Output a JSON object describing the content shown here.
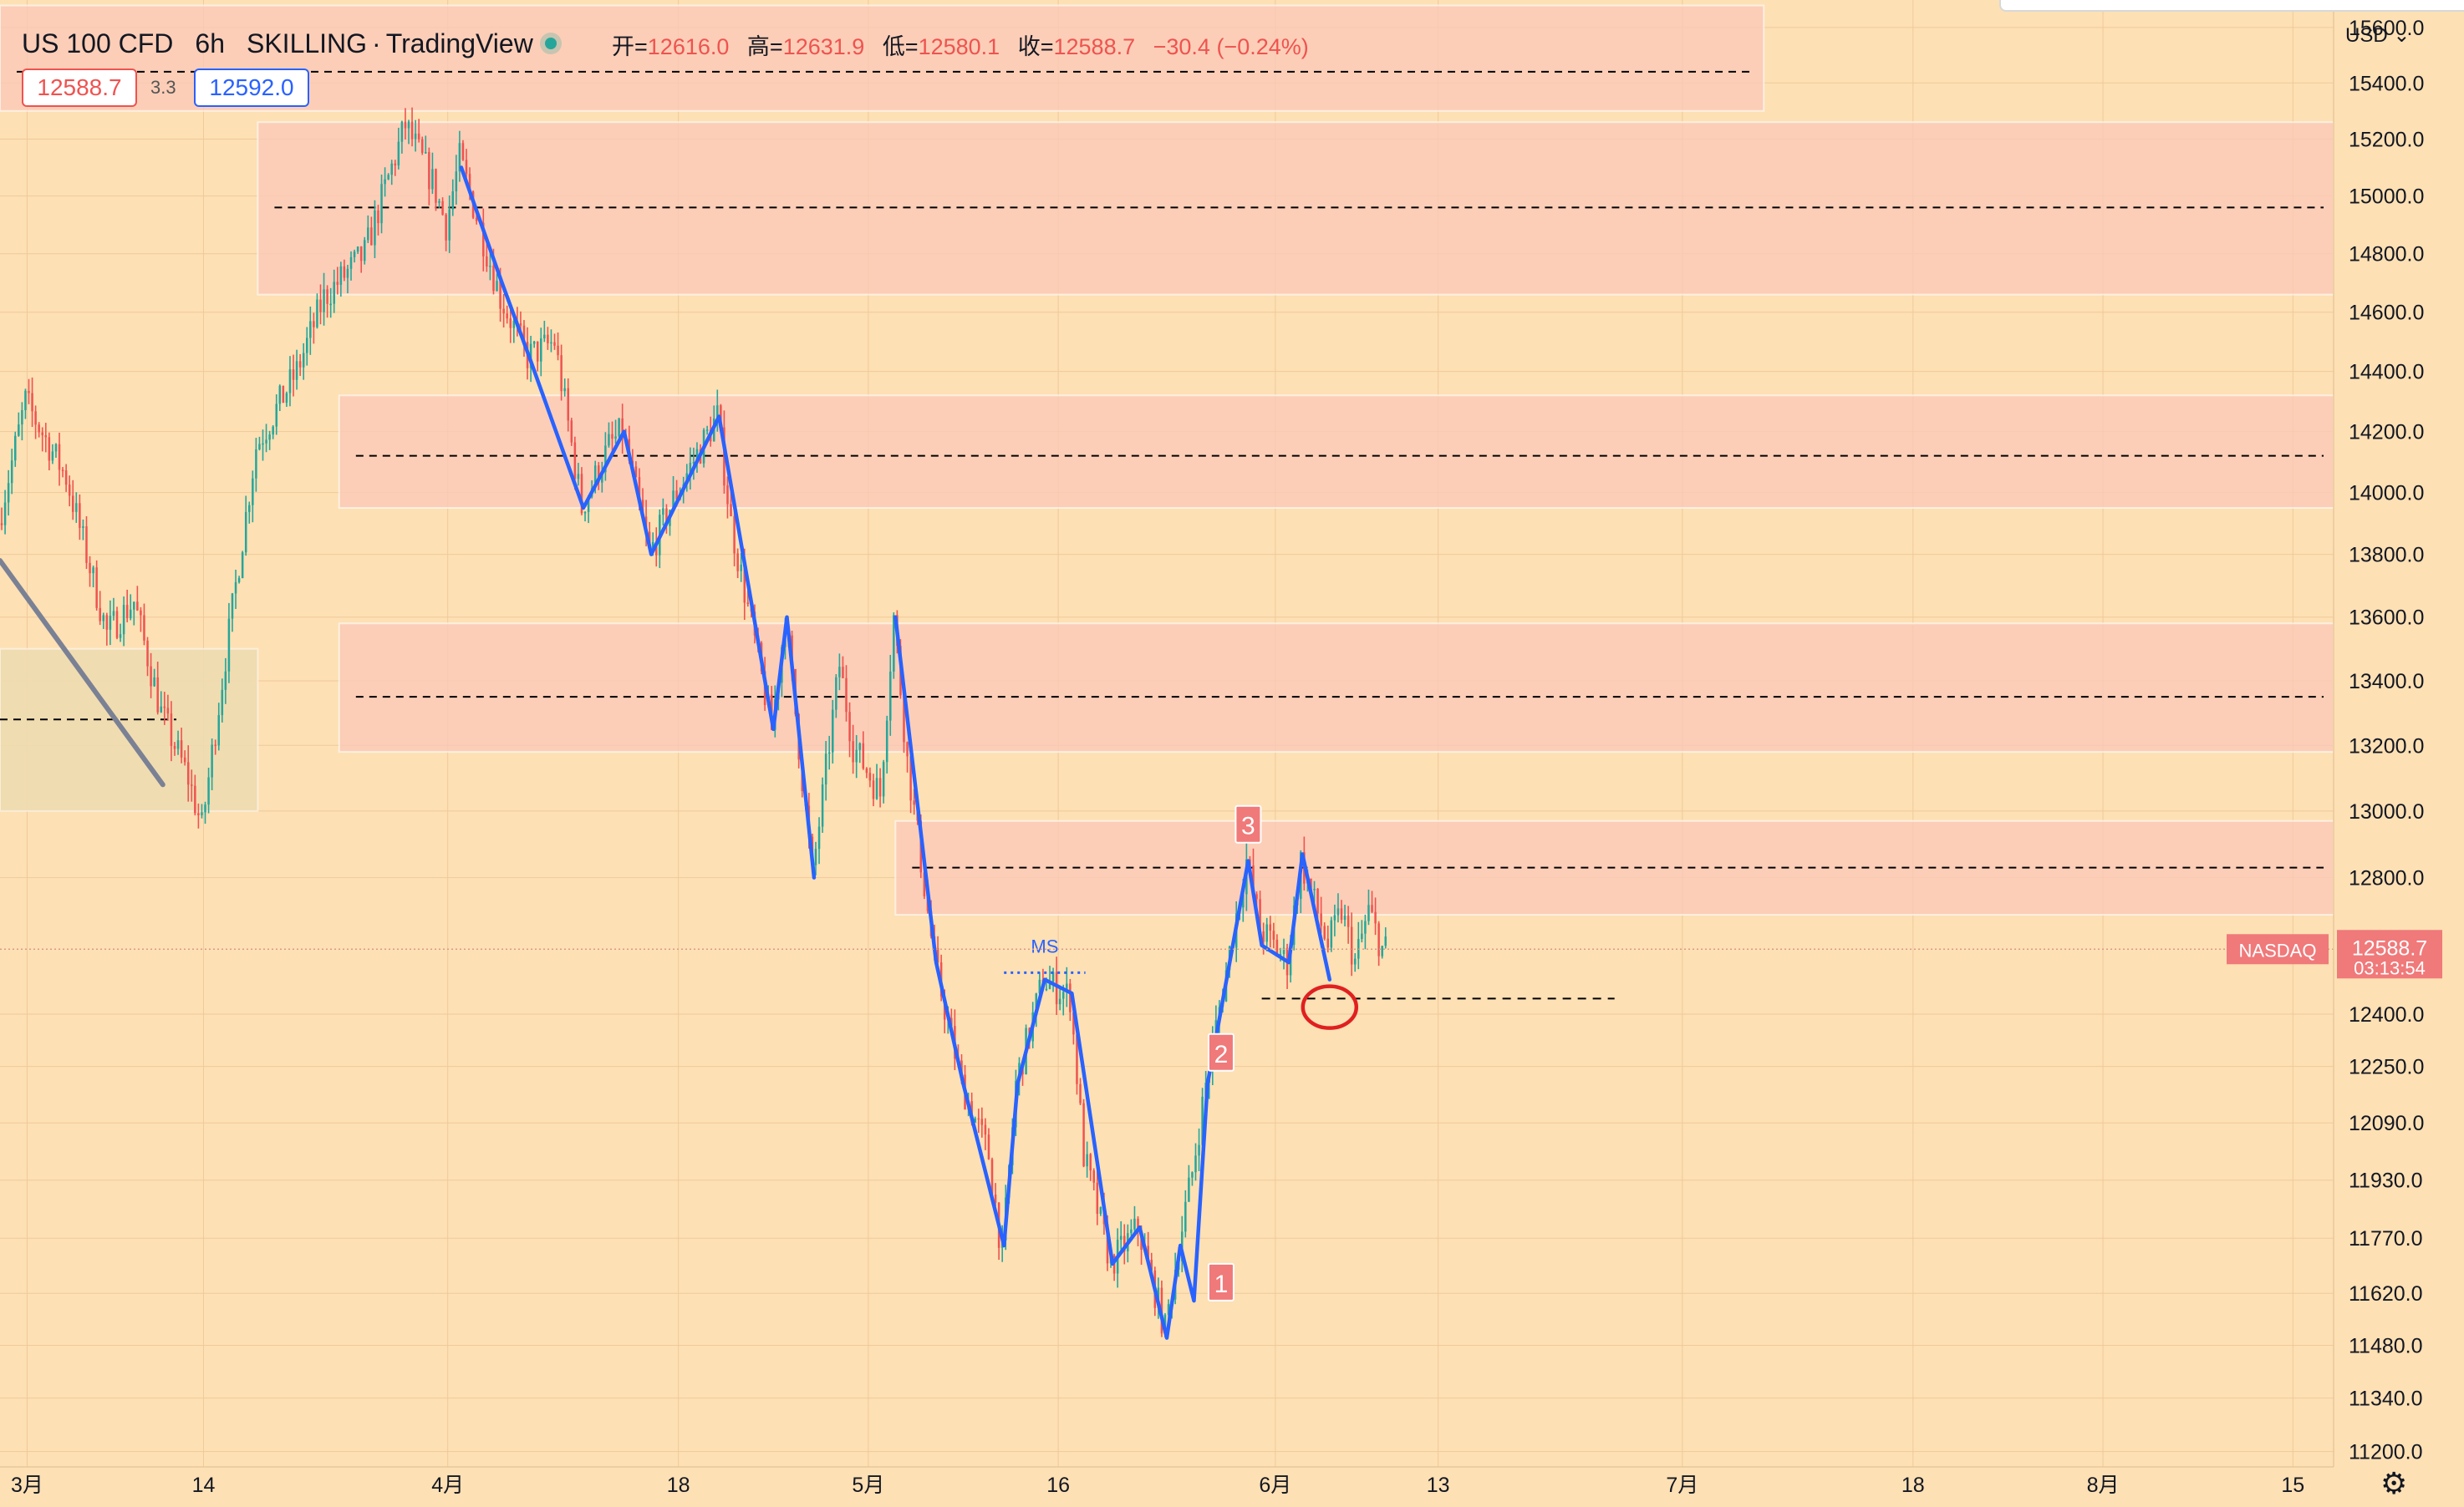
{
  "header": {
    "symbol": "US 100 CFD",
    "interval": "6h",
    "broker": "SKILLING",
    "platform": "TradingView",
    "ohlc": {
      "open_label": "开=",
      "open": "12616.0",
      "high_label": "高=",
      "high": "12631.9",
      "low_label": "低=",
      "low": "12580.1",
      "close_label": "收=",
      "close": "12588.7",
      "change": "−30.4 (−0.24%)"
    },
    "bid": "12588.7",
    "spread": "3.3",
    "ask": "12592.0"
  },
  "axis": {
    "currency": "USD",
    "currency_chevron": "⌄",
    "settings_icon": "gear-icon",
    "settings_glyph": "⚙"
  },
  "colors": {
    "background": "#fde0b4",
    "up_candle": "#26a69a",
    "down_candle": "#ef5350",
    "zone_fill": "#fbc8b8",
    "trend_line": "#2962ff",
    "price_label_bg": "#f0797a"
  },
  "chart_data": {
    "type": "candlestick",
    "scale": "log",
    "grid": true,
    "y_ticks": [
      15600.0,
      15400.0,
      15200.0,
      15000.0,
      14800.0,
      14600.0,
      14400.0,
      14200.0,
      14000.0,
      13800.0,
      13600.0,
      13400.0,
      13200.0,
      13000.0,
      12800.0,
      12400.0,
      12250.0,
      12090.0,
      11930.0,
      11770.0,
      11620.0,
      11480.0,
      11340.0,
      11200.0
    ],
    "ylim": [
      11160,
      15700
    ],
    "x_labels": [
      {
        "label": "3月",
        "date": "2022-03-01"
      },
      {
        "label": "14",
        "date": "2022-03-14"
      },
      {
        "label": "4月",
        "date": "2022-04-01"
      },
      {
        "label": "18",
        "date": "2022-04-18"
      },
      {
        "label": "5月",
        "date": "2022-05-02"
      },
      {
        "label": "16",
        "date": "2022-05-16"
      },
      {
        "label": "6月",
        "date": "2022-06-01"
      },
      {
        "label": "13",
        "date": "2022-06-13"
      },
      {
        "label": "7月",
        "date": "2022-07-01"
      },
      {
        "label": "18",
        "date": "2022-07-18"
      },
      {
        "label": "8月",
        "date": "2022-08-01"
      },
      {
        "label": "15",
        "date": "2022-08-15"
      }
    ],
    "xlim": [
      "2022-02-27",
      "2022-08-18"
    ],
    "price_path": [
      [
        "2022-02-27",
        13900
      ],
      [
        "2022-03-01",
        14300
      ],
      [
        "2022-03-04",
        14050
      ],
      [
        "2022-03-07",
        13550
      ],
      [
        "2022-03-09",
        13650
      ],
      [
        "2022-03-11",
        13300
      ],
      [
        "2022-03-13",
        13100
      ],
      [
        "2022-03-14",
        12950
      ],
      [
        "2022-03-16",
        13550
      ],
      [
        "2022-03-18",
        14150
      ],
      [
        "2022-03-21",
        14400
      ],
      [
        "2022-03-23",
        14650
      ],
      [
        "2022-03-26",
        14800
      ],
      [
        "2022-03-29",
        15250
      ],
      [
        "2022-03-31",
        15050
      ],
      [
        "2022-04-01",
        14900
      ],
      [
        "2022-04-02",
        15130
      ],
      [
        "2022-04-05",
        14650
      ],
      [
        "2022-04-07",
        14450
      ],
      [
        "2022-04-09",
        14500
      ],
      [
        "2022-04-11",
        13950
      ],
      [
        "2022-04-13",
        14150
      ],
      [
        "2022-04-14",
        14200
      ],
      [
        "2022-04-16",
        13800
      ],
      [
        "2022-04-18",
        14000
      ],
      [
        "2022-04-21",
        14250
      ],
      [
        "2022-04-22",
        13900
      ],
      [
        "2022-04-25",
        13250
      ],
      [
        "2022-04-26",
        13600
      ],
      [
        "2022-04-28",
        12800
      ],
      [
        "2022-04-30",
        13450
      ],
      [
        "2022-05-01",
        13200
      ],
      [
        "2022-05-03",
        13050
      ],
      [
        "2022-05-04",
        13600
      ],
      [
        "2022-05-05",
        13150
      ],
      [
        "2022-05-07",
        12550
      ],
      [
        "2022-05-09",
        12200
      ],
      [
        "2022-05-11",
        12000
      ],
      [
        "2022-05-12",
        11720
      ],
      [
        "2022-05-13",
        12200
      ],
      [
        "2022-05-15",
        12500
      ],
      [
        "2022-05-17",
        12450
      ],
      [
        "2022-05-18",
        12000
      ],
      [
        "2022-05-19",
        11850
      ],
      [
        "2022-05-20",
        11700
      ],
      [
        "2022-05-22",
        11800
      ],
      [
        "2022-05-24",
        11520
      ],
      [
        "2022-05-25",
        11750
      ],
      [
        "2022-05-26",
        11950
      ],
      [
        "2022-05-27",
        12200
      ],
      [
        "2022-05-30",
        12850
      ],
      [
        "2022-05-31",
        12650
      ],
      [
        "2022-06-02",
        12550
      ],
      [
        "2022-06-03",
        12850
      ],
      [
        "2022-06-05",
        12600
      ],
      [
        "2022-06-06",
        12700
      ],
      [
        "2022-06-07",
        12550
      ],
      [
        "2022-06-08",
        12700
      ],
      [
        "2022-06-09",
        12589
      ]
    ],
    "last_price": 12588.7,
    "exchange_label": "NASDAQ",
    "last_price_label": "12588.7",
    "countdown": "03:13:54",
    "zones": [
      {
        "from": "2022-02-27",
        "to": "2022-07-07",
        "low": 15300,
        "high": 15680,
        "mid": 15440
      },
      {
        "from": "2022-03-18",
        "to": "2022-08-18",
        "low": 14660,
        "high": 15260,
        "mid": 14960
      },
      {
        "from": "2022-03-24",
        "to": "2022-08-18",
        "low": 13950,
        "high": 14320,
        "mid": 14120
      },
      {
        "from": "2022-03-24",
        "to": "2022-08-18",
        "low": 13180,
        "high": 13580,
        "mid": 13350
      },
      {
        "from": "2022-05-04",
        "to": "2022-08-18",
        "low": 12690,
        "high": 12970,
        "mid": 12830
      }
    ],
    "demand_zone": {
      "from": "2022-02-27",
      "to": "2022-03-18",
      "low": 13000,
      "high": 13500,
      "mid": 13280
    },
    "diagonal_line": [
      [
        "2022-02-27",
        13780
      ],
      [
        "2022-03-11",
        13080
      ]
    ],
    "support_line": {
      "from": "2022-05-31",
      "to": "2022-06-26",
      "price": 12445
    },
    "ms_line": {
      "from": "2022-05-12",
      "to": "2022-05-18",
      "price": 12520,
      "label": "MS"
    },
    "wave_labels": [
      {
        "label": "3",
        "date": "2022-05-30",
        "price": 12960
      },
      {
        "label": "2",
        "date": "2022-05-28",
        "price": 12290
      },
      {
        "label": "1",
        "date": "2022-05-28",
        "price": 11650
      }
    ],
    "marked_point": {
      "date": "2022-06-05",
      "price": 12420
    },
    "trend_segments": [
      [
        [
          "2022-04-02",
          15100
        ],
        [
          "2022-04-05",
          14700
        ],
        [
          "2022-04-07",
          14450
        ],
        [
          "2022-04-11",
          13950
        ],
        [
          "2022-04-14",
          14200
        ],
        [
          "2022-04-16",
          13800
        ],
        [
          "2022-04-21",
          14250
        ],
        [
          "2022-04-25",
          13250
        ],
        [
          "2022-04-26",
          13600
        ],
        [
          "2022-04-28",
          12800
        ]
      ],
      [
        [
          "2022-05-04",
          13600
        ],
        [
          "2022-05-07",
          12550
        ],
        [
          "2022-05-09",
          12200
        ],
        [
          "2022-05-12",
          11750
        ],
        [
          "2022-05-13",
          12200
        ],
        [
          "2022-05-15",
          12500
        ],
        [
          "2022-05-17",
          12460
        ],
        [
          "2022-05-20",
          11700
        ],
        [
          "2022-05-22",
          11800
        ],
        [
          "2022-05-24",
          11500
        ],
        [
          "2022-05-25",
          11750
        ],
        [
          "2022-05-26",
          11600
        ],
        [
          "2022-05-27",
          12200
        ],
        [
          "2022-05-30",
          12850
        ],
        [
          "2022-05-31",
          12600
        ],
        [
          "2022-06-02",
          12550
        ],
        [
          "2022-06-03",
          12870
        ],
        [
          "2022-06-05",
          12500
        ]
      ]
    ]
  }
}
